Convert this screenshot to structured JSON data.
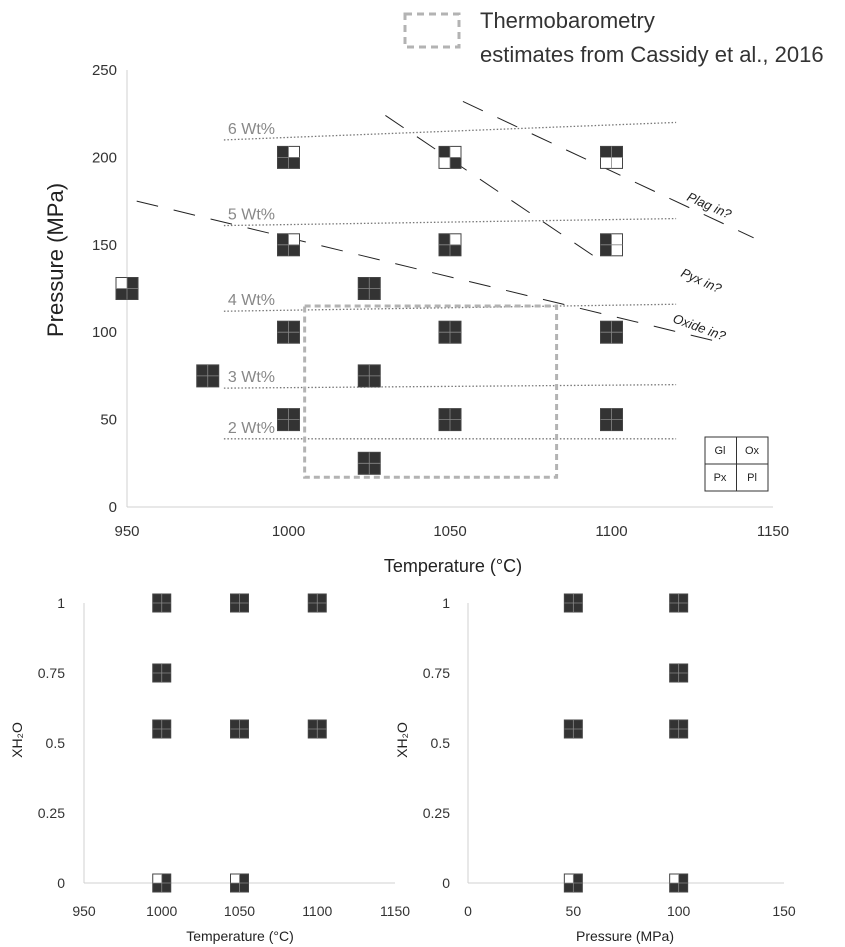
{
  "legend_box": {
    "line1": "Thermobarometry",
    "line2": "estimates from Cassidy et al., 2016"
  },
  "colors": {
    "filled": "#333333",
    "empty": "#ffffff",
    "axis": "#d0d0d0",
    "tick_text": "#333333",
    "contour": "#777777",
    "cassidy_box": "#b3b3b3",
    "label_gray": "#888888"
  },
  "key": {
    "gl": "Gl",
    "ox": "Ox",
    "px": "Px",
    "pl": "Pl"
  },
  "chart_data": [
    {
      "type": "scatter",
      "id": "main",
      "xlabel": "Temperature (°C)",
      "ylabel": "Pressure (MPa)",
      "xlim": [
        950,
        1150
      ],
      "ylim": [
        0,
        250
      ],
      "xticks": [
        "950",
        "1000",
        "1050",
        "1100",
        "1150"
      ],
      "yticks": [
        "0",
        "50",
        "100",
        "150",
        "200",
        "250"
      ],
      "grid": false,
      "marker_encoding": "quadrants Gl (top-left), Ox (top-right), Px (bottom-left), Pl (bottom-right); filled = phase present",
      "points": [
        {
          "x": 950,
          "y": 125,
          "phases": {
            "gl": false,
            "ox": true,
            "px": true,
            "pl": true
          }
        },
        {
          "x": 975,
          "y": 75,
          "phases": {
            "gl": true,
            "ox": true,
            "px": true,
            "pl": true
          }
        },
        {
          "x": 1000,
          "y": 200,
          "phases": {
            "gl": true,
            "ox": false,
            "px": true,
            "pl": true
          }
        },
        {
          "x": 1000,
          "y": 150,
          "phases": {
            "gl": true,
            "ox": false,
            "px": true,
            "pl": true
          }
        },
        {
          "x": 1000,
          "y": 100,
          "phases": {
            "gl": true,
            "ox": true,
            "px": true,
            "pl": true
          }
        },
        {
          "x": 1000,
          "y": 50,
          "phases": {
            "gl": true,
            "ox": true,
            "px": true,
            "pl": true
          }
        },
        {
          "x": 1025,
          "y": 125,
          "phases": {
            "gl": true,
            "ox": true,
            "px": true,
            "pl": true
          }
        },
        {
          "x": 1025,
          "y": 75,
          "phases": {
            "gl": true,
            "ox": true,
            "px": true,
            "pl": true
          }
        },
        {
          "x": 1025,
          "y": 25,
          "phases": {
            "gl": true,
            "ox": true,
            "px": true,
            "pl": true
          }
        },
        {
          "x": 1050,
          "y": 200,
          "phases": {
            "gl": true,
            "ox": false,
            "px": false,
            "pl": true
          }
        },
        {
          "x": 1050,
          "y": 150,
          "phases": {
            "gl": true,
            "ox": false,
            "px": true,
            "pl": true
          }
        },
        {
          "x": 1050,
          "y": 100,
          "phases": {
            "gl": true,
            "ox": true,
            "px": true,
            "pl": true
          }
        },
        {
          "x": 1050,
          "y": 50,
          "phases": {
            "gl": true,
            "ox": true,
            "px": true,
            "pl": true
          }
        },
        {
          "x": 1100,
          "y": 200,
          "phases": {
            "gl": true,
            "ox": true,
            "px": false,
            "pl": false
          }
        },
        {
          "x": 1100,
          "y": 150,
          "phases": {
            "gl": true,
            "ox": false,
            "px": true,
            "pl": false
          }
        },
        {
          "x": 1100,
          "y": 100,
          "phases": {
            "gl": true,
            "ox": true,
            "px": true,
            "pl": true
          }
        },
        {
          "x": 1100,
          "y": 50,
          "phases": {
            "gl": true,
            "ox": true,
            "px": true,
            "pl": true
          }
        }
      ],
      "isopleths": [
        {
          "label": "6 Wt%",
          "from": [
            980,
            210
          ],
          "to": [
            1120,
            220
          ]
        },
        {
          "label": "5 Wt%",
          "from": [
            980,
            161
          ],
          "to": [
            1120,
            165
          ]
        },
        {
          "label": "4 Wt%",
          "from": [
            980,
            112
          ],
          "to": [
            1120,
            116
          ]
        },
        {
          "label": "3 Wt%",
          "from": [
            980,
            68
          ],
          "to": [
            1120,
            70
          ]
        },
        {
          "label": "2 Wt%",
          "from": [
            980,
            39
          ],
          "to": [
            1120,
            39
          ]
        }
      ],
      "phase_boundaries": [
        {
          "label": "Plag in?",
          "from": [
            1054,
            232
          ],
          "to": [
            1144,
            154
          ]
        },
        {
          "label": "Pyx in?",
          "from": [
            1030,
            224
          ],
          "to": [
            1095,
            143
          ]
        },
        {
          "label": "Oxide in?",
          "from": [
            953,
            175
          ],
          "to": [
            1132,
            95
          ]
        }
      ],
      "thermobarometry_box": {
        "x": [
          1005,
          1083
        ],
        "y": [
          17,
          115
        ]
      }
    },
    {
      "type": "scatter",
      "id": "xh2o_vs_temperature",
      "xlabel": "Temperature (°C)",
      "ylabel": "XH₂O",
      "xlim": [
        950,
        1150
      ],
      "ylim": [
        0,
        1
      ],
      "xticks": [
        "950",
        "1000",
        "1050",
        "1100",
        "1150"
      ],
      "yticks": [
        "0",
        "0.25",
        "0.5",
        "0.75",
        "1"
      ],
      "grid": false,
      "points": [
        {
          "x": 1000,
          "y": 1,
          "phases": {
            "gl": true,
            "ox": true,
            "px": true,
            "pl": true
          }
        },
        {
          "x": 1050,
          "y": 1,
          "phases": {
            "gl": true,
            "ox": true,
            "px": true,
            "pl": true
          }
        },
        {
          "x": 1100,
          "y": 1,
          "phases": {
            "gl": true,
            "ox": true,
            "px": true,
            "pl": true
          }
        },
        {
          "x": 1000,
          "y": 0.75,
          "phases": {
            "gl": true,
            "ox": true,
            "px": true,
            "pl": true
          }
        },
        {
          "x": 1000,
          "y": 0.55,
          "phases": {
            "gl": true,
            "ox": true,
            "px": true,
            "pl": true
          }
        },
        {
          "x": 1050,
          "y": 0.55,
          "phases": {
            "gl": true,
            "ox": true,
            "px": true,
            "pl": true
          }
        },
        {
          "x": 1100,
          "y": 0.55,
          "phases": {
            "gl": true,
            "ox": true,
            "px": true,
            "pl": true
          }
        },
        {
          "x": 1000,
          "y": 0,
          "phases": {
            "gl": false,
            "ox": true,
            "px": true,
            "pl": true
          }
        },
        {
          "x": 1050,
          "y": 0,
          "phases": {
            "gl": false,
            "ox": true,
            "px": true,
            "pl": true
          }
        }
      ]
    },
    {
      "type": "scatter",
      "id": "xh2o_vs_pressure",
      "xlabel": "Pressure (MPa)",
      "ylabel": "XH₂O",
      "xlim": [
        0,
        150
      ],
      "ylim": [
        0,
        1
      ],
      "xticks": [
        "0",
        "50",
        "100",
        "150"
      ],
      "yticks": [
        "0",
        "0.25",
        "0.5",
        "0.75",
        "1"
      ],
      "grid": false,
      "points": [
        {
          "x": 50,
          "y": 1,
          "phases": {
            "gl": true,
            "ox": true,
            "px": true,
            "pl": true
          }
        },
        {
          "x": 100,
          "y": 1,
          "phases": {
            "gl": true,
            "ox": true,
            "px": true,
            "pl": true
          }
        },
        {
          "x": 100,
          "y": 0.75,
          "phases": {
            "gl": true,
            "ox": true,
            "px": true,
            "pl": true
          }
        },
        {
          "x": 50,
          "y": 0.55,
          "phases": {
            "gl": true,
            "ox": true,
            "px": true,
            "pl": true
          }
        },
        {
          "x": 100,
          "y": 0.55,
          "phases": {
            "gl": true,
            "ox": true,
            "px": true,
            "pl": true
          }
        },
        {
          "x": 50,
          "y": 0,
          "phases": {
            "gl": false,
            "ox": true,
            "px": true,
            "pl": true
          }
        },
        {
          "x": 100,
          "y": 0,
          "phases": {
            "gl": false,
            "ox": true,
            "px": true,
            "pl": true
          }
        }
      ]
    }
  ]
}
